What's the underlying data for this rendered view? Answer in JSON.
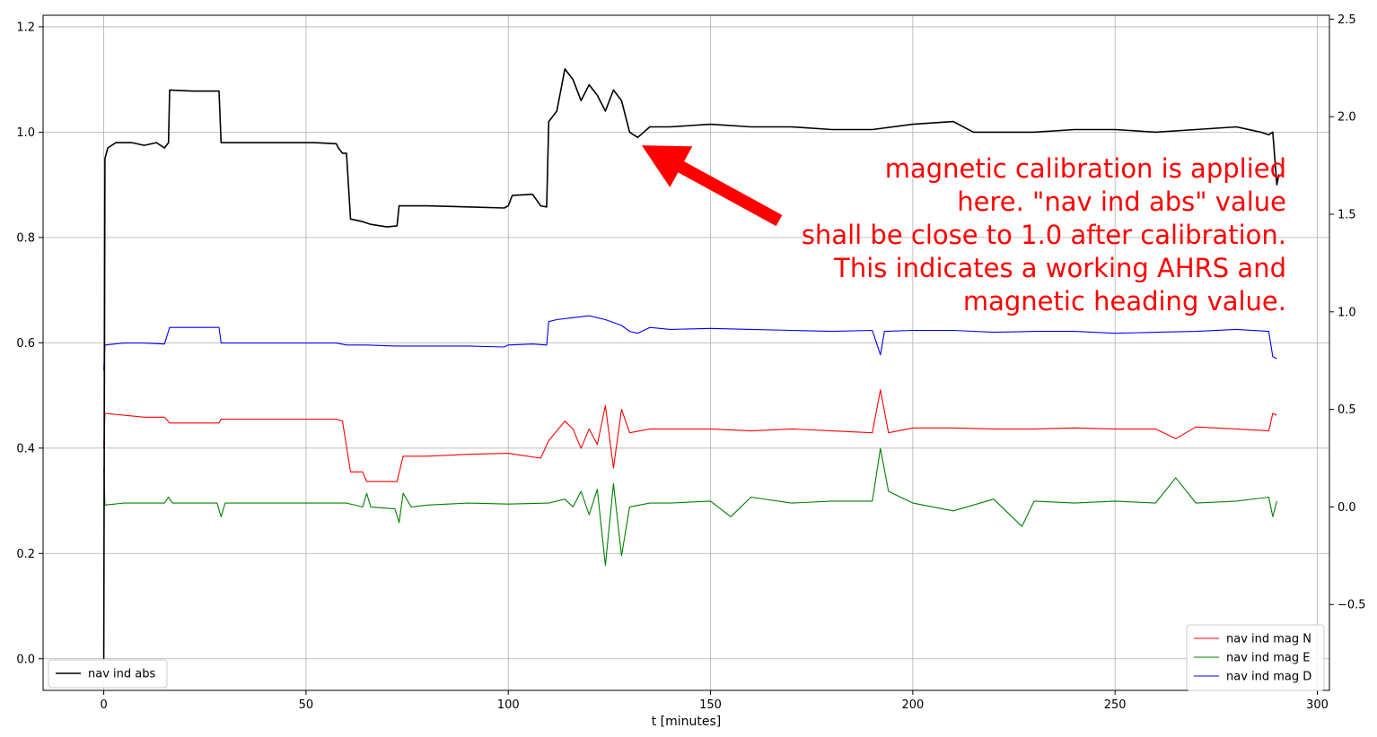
{
  "chart_data": {
    "type": "line",
    "xlabel": "t [minutes]",
    "xlim": [
      -15,
      303
    ],
    "xticks": [
      0,
      50,
      100,
      150,
      200,
      250,
      300
    ],
    "xtick_labels": [
      "0",
      "50",
      "100",
      "150",
      "200",
      "250",
      "300"
    ],
    "left_axis": {
      "ylim": [
        -0.06,
        1.222
      ],
      "ticks": [
        0.0,
        0.2,
        0.4,
        0.6,
        0.8,
        1.0,
        1.2
      ],
      "tick_labels": [
        "0.0",
        "0.2",
        "0.4",
        "0.6",
        "0.8",
        "1.0",
        "1.2"
      ]
    },
    "right_axis": {
      "ylim": [
        -0.94,
        2.52
      ],
      "ticks": [
        -0.5,
        0.0,
        0.5,
        1.0,
        1.5,
        2.0,
        2.5
      ],
      "tick_labels": [
        "−0.5",
        "0.0",
        "0.5",
        "1.0",
        "1.5",
        "2.0",
        "2.5"
      ]
    },
    "grid": true,
    "series": [
      {
        "name": "nav ind abs",
        "axis": "left",
        "color": "#000000",
        "points": [
          [
            0,
            0.0
          ],
          [
            0.3,
            0.95
          ],
          [
            1,
            0.97
          ],
          [
            3,
            0.98
          ],
          [
            7,
            0.98
          ],
          [
            10,
            0.975
          ],
          [
            13,
            0.98
          ],
          [
            15,
            0.97
          ],
          [
            16,
            0.98
          ],
          [
            16.3,
            1.08
          ],
          [
            22,
            1.078
          ],
          [
            28.5,
            1.078
          ],
          [
            29,
            0.98
          ],
          [
            40,
            0.98
          ],
          [
            52,
            0.98
          ],
          [
            57.5,
            0.978
          ],
          [
            58,
            0.97
          ],
          [
            59,
            0.96
          ],
          [
            60,
            0.96
          ],
          [
            61,
            0.835
          ],
          [
            64,
            0.83
          ],
          [
            66,
            0.825
          ],
          [
            70,
            0.82
          ],
          [
            72.5,
            0.822
          ],
          [
            73,
            0.86
          ],
          [
            80,
            0.86
          ],
          [
            90,
            0.858
          ],
          [
            99,
            0.856
          ],
          [
            100,
            0.86
          ],
          [
            101,
            0.88
          ],
          [
            106,
            0.882
          ],
          [
            108,
            0.86
          ],
          [
            109.5,
            0.858
          ],
          [
            110,
            1.02
          ],
          [
            112,
            1.04
          ],
          [
            114,
            1.12
          ],
          [
            116,
            1.1
          ],
          [
            118,
            1.06
          ],
          [
            120,
            1.09
          ],
          [
            122,
            1.07
          ],
          [
            124,
            1.04
          ],
          [
            126,
            1.08
          ],
          [
            128,
            1.06
          ],
          [
            130,
            1.0
          ],
          [
            132,
            0.99
          ],
          [
            135,
            1.01
          ],
          [
            140,
            1.01
          ],
          [
            150,
            1.015
          ],
          [
            160,
            1.01
          ],
          [
            170,
            1.01
          ],
          [
            180,
            1.005
          ],
          [
            190,
            1.005
          ],
          [
            200,
            1.015
          ],
          [
            210,
            1.02
          ],
          [
            215,
            1.0
          ],
          [
            220,
            1.0
          ],
          [
            230,
            1.0
          ],
          [
            240,
            1.005
          ],
          [
            250,
            1.005
          ],
          [
            260,
            1.0
          ],
          [
            270,
            1.005
          ],
          [
            280,
            1.01
          ],
          [
            286,
            1.0
          ],
          [
            288,
            0.995
          ],
          [
            289,
            1.0
          ],
          [
            290,
            0.9
          ],
          [
            290.5,
            0.92
          ]
        ]
      },
      {
        "name": "nav ind mag N",
        "axis": "right",
        "color": "#ff0000",
        "points": [
          [
            0,
            0.3
          ],
          [
            0.3,
            0.48
          ],
          [
            5,
            0.47
          ],
          [
            10,
            0.46
          ],
          [
            15,
            0.46
          ],
          [
            16.3,
            0.43
          ],
          [
            28.5,
            0.43
          ],
          [
            29,
            0.45
          ],
          [
            40,
            0.45
          ],
          [
            57.5,
            0.45
          ],
          [
            59,
            0.44
          ],
          [
            61,
            0.18
          ],
          [
            64,
            0.18
          ],
          [
            65,
            0.13
          ],
          [
            72.5,
            0.13
          ],
          [
            74,
            0.26
          ],
          [
            80,
            0.26
          ],
          [
            90,
            0.27
          ],
          [
            100,
            0.275
          ],
          [
            108,
            0.25
          ],
          [
            110,
            0.34
          ],
          [
            114,
            0.44
          ],
          [
            116,
            0.4
          ],
          [
            118,
            0.3
          ],
          [
            120,
            0.4
          ],
          [
            122,
            0.32
          ],
          [
            124,
            0.52
          ],
          [
            126,
            0.2
          ],
          [
            128,
            0.5
          ],
          [
            130,
            0.38
          ],
          [
            135,
            0.4
          ],
          [
            140,
            0.4
          ],
          [
            150,
            0.4
          ],
          [
            160,
            0.39
          ],
          [
            170,
            0.4
          ],
          [
            180,
            0.39
          ],
          [
            190,
            0.38
          ],
          [
            192,
            0.6
          ],
          [
            194,
            0.38
          ],
          [
            200,
            0.405
          ],
          [
            210,
            0.405
          ],
          [
            220,
            0.4
          ],
          [
            230,
            0.4
          ],
          [
            240,
            0.405
          ],
          [
            250,
            0.4
          ],
          [
            260,
            0.4
          ],
          [
            265,
            0.35
          ],
          [
            270,
            0.41
          ],
          [
            280,
            0.4
          ],
          [
            288,
            0.39
          ],
          [
            289,
            0.48
          ],
          [
            290,
            0.47
          ]
        ]
      },
      {
        "name": "nav ind mag E",
        "axis": "right",
        "color": "#008000",
        "points": [
          [
            0,
            0.2
          ],
          [
            0.3,
            0.01
          ],
          [
            5,
            0.02
          ],
          [
            10,
            0.02
          ],
          [
            15,
            0.02
          ],
          [
            16,
            0.05
          ],
          [
            17,
            0.02
          ],
          [
            28,
            0.02
          ],
          [
            29,
            -0.05
          ],
          [
            30,
            0.02
          ],
          [
            40,
            0.02
          ],
          [
            57.5,
            0.02
          ],
          [
            60,
            0.02
          ],
          [
            64,
            0.0
          ],
          [
            65,
            0.07
          ],
          [
            66,
            0.0
          ],
          [
            72,
            -0.01
          ],
          [
            73,
            -0.08
          ],
          [
            74,
            0.07
          ],
          [
            76,
            0.0
          ],
          [
            80,
            0.01
          ],
          [
            90,
            0.02
          ],
          [
            100,
            0.015
          ],
          [
            110,
            0.02
          ],
          [
            114,
            0.04
          ],
          [
            116,
            0.0
          ],
          [
            118,
            0.08
          ],
          [
            120,
            -0.04
          ],
          [
            122,
            0.09
          ],
          [
            124,
            -0.3
          ],
          [
            126,
            0.12
          ],
          [
            128,
            -0.25
          ],
          [
            130,
            0.0
          ],
          [
            135,
            0.02
          ],
          [
            140,
            0.02
          ],
          [
            150,
            0.03
          ],
          [
            155,
            -0.05
          ],
          [
            160,
            0.05
          ],
          [
            170,
            0.02
          ],
          [
            180,
            0.03
          ],
          [
            190,
            0.03
          ],
          [
            192,
            0.3
          ],
          [
            194,
            0.08
          ],
          [
            200,
            0.02
          ],
          [
            210,
            -0.02
          ],
          [
            220,
            0.04
          ],
          [
            227,
            -0.1
          ],
          [
            230,
            0.03
          ],
          [
            240,
            0.02
          ],
          [
            250,
            0.03
          ],
          [
            260,
            0.02
          ],
          [
            265,
            0.15
          ],
          [
            270,
            0.02
          ],
          [
            280,
            0.03
          ],
          [
            288,
            0.05
          ],
          [
            289,
            -0.05
          ],
          [
            290,
            0.03
          ]
        ]
      },
      {
        "name": "nav ind mag D",
        "axis": "right",
        "color": "#0000ff",
        "points": [
          [
            0,
            0.7
          ],
          [
            0.3,
            0.83
          ],
          [
            5,
            0.84
          ],
          [
            10,
            0.84
          ],
          [
            15,
            0.835
          ],
          [
            16.3,
            0.92
          ],
          [
            28.5,
            0.92
          ],
          [
            29,
            0.84
          ],
          [
            40,
            0.84
          ],
          [
            57.5,
            0.84
          ],
          [
            60,
            0.83
          ],
          [
            65,
            0.83
          ],
          [
            72,
            0.825
          ],
          [
            80,
            0.825
          ],
          [
            90,
            0.825
          ],
          [
            99,
            0.82
          ],
          [
            100,
            0.83
          ],
          [
            106,
            0.835
          ],
          [
            109.5,
            0.83
          ],
          [
            110,
            0.95
          ],
          [
            112,
            0.96
          ],
          [
            116,
            0.97
          ],
          [
            120,
            0.98
          ],
          [
            124,
            0.96
          ],
          [
            128,
            0.93
          ],
          [
            130,
            0.9
          ],
          [
            132,
            0.89
          ],
          [
            135,
            0.92
          ],
          [
            140,
            0.91
          ],
          [
            150,
            0.915
          ],
          [
            160,
            0.91
          ],
          [
            170,
            0.905
          ],
          [
            180,
            0.9
          ],
          [
            190,
            0.905
          ],
          [
            192,
            0.78
          ],
          [
            193,
            0.9
          ],
          [
            200,
            0.905
          ],
          [
            210,
            0.905
          ],
          [
            220,
            0.895
          ],
          [
            230,
            0.9
          ],
          [
            240,
            0.9
          ],
          [
            250,
            0.89
          ],
          [
            260,
            0.895
          ],
          [
            270,
            0.9
          ],
          [
            280,
            0.91
          ],
          [
            288,
            0.9
          ],
          [
            289,
            0.77
          ],
          [
            290,
            0.76
          ]
        ]
      }
    ],
    "legend_left": {
      "position": "lower-left",
      "entries": [
        {
          "label": "nav ind abs",
          "color": "#000000"
        }
      ]
    },
    "legend_right": {
      "position": "lower-right",
      "entries": [
        {
          "label": "nav ind mag N",
          "color": "#ff0000"
        },
        {
          "label": "nav ind mag E",
          "color": "#008000"
        },
        {
          "label": "nav ind mag D",
          "color": "#0000ff"
        }
      ]
    },
    "annotation": {
      "lines": [
        "magnetic calibration is applied",
        "here.  \"nav ind abs\" value",
        "shall be close to 1.0 after calibration.",
        "This indicates a working AHRS and",
        "magnetic heading value."
      ],
      "color": "#ff0000",
      "arrow_target": {
        "x": 133,
        "y": 0.975
      }
    }
  }
}
